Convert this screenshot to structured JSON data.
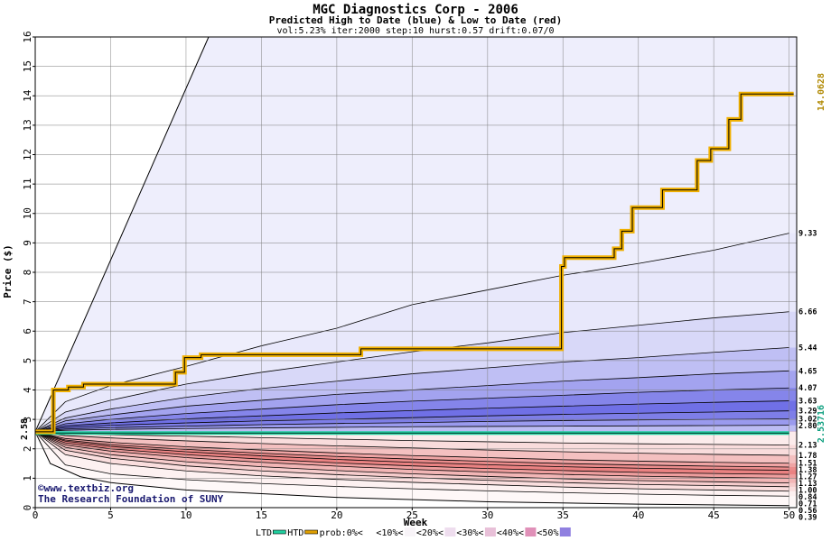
{
  "chart_data": {
    "type": "area",
    "title": "MGC Diagnostics Corp - 2006",
    "subtitle": "Predicted High to Date (blue) &  Low to Date (red)",
    "params": "vol:5.23% iter:2000 step:10 hurst:0.57 drift:0.07/0",
    "xlabel": "Week",
    "ylabel": "Price ($)",
    "xlim": [
      0,
      50.5
    ],
    "ylim": [
      0,
      16
    ],
    "xticks": [
      0,
      5,
      10,
      15,
      20,
      25,
      30,
      35,
      40,
      45,
      50
    ],
    "yticks": [
      0,
      1,
      2,
      3,
      4,
      5,
      6,
      7,
      8,
      9,
      10,
      11,
      12,
      13,
      14,
      15,
      16
    ],
    "grid": true,
    "start_price": 2.58,
    "start_label": "2.58",
    "x": [
      0,
      2,
      5,
      10,
      15,
      20,
      25,
      30,
      35,
      40,
      45,
      50
    ],
    "upper_bands": [
      {
        "end_label": "9.33",
        "color": "#e8e8fb",
        "values": [
          2.58,
          3.6,
          4.15,
          4.8,
          5.5,
          6.1,
          6.9,
          7.4,
          7.9,
          8.3,
          8.75,
          9.33
        ]
      },
      {
        "end_label": "6.66",
        "color": "#d8d8f8",
        "values": [
          2.58,
          3.25,
          3.65,
          4.2,
          4.6,
          4.95,
          5.3,
          5.6,
          5.95,
          6.2,
          6.45,
          6.66
        ]
      },
      {
        "end_label": "5.44",
        "color": "#bfbff4",
        "values": [
          2.58,
          3.05,
          3.35,
          3.75,
          4.05,
          4.3,
          4.55,
          4.75,
          4.95,
          5.1,
          5.28,
          5.44
        ]
      },
      {
        "end_label": "4.65",
        "color": "#a3a3ef",
        "values": [
          2.58,
          2.95,
          3.15,
          3.45,
          3.65,
          3.85,
          4.0,
          4.15,
          4.3,
          4.42,
          4.55,
          4.65
        ]
      },
      {
        "end_label": "4.07",
        "color": "#8585ea",
        "values": [
          2.58,
          2.85,
          3.0,
          3.2,
          3.35,
          3.5,
          3.62,
          3.72,
          3.82,
          3.92,
          4.0,
          4.07
        ]
      },
      {
        "end_label": "3.63",
        "color": "#7070e6",
        "values": [
          2.58,
          2.78,
          2.88,
          3.02,
          3.12,
          3.22,
          3.3,
          3.38,
          3.45,
          3.52,
          3.58,
          3.63
        ]
      },
      {
        "end_label": "3.29",
        "color": "#7e7ee8",
        "values": [
          2.58,
          2.72,
          2.8,
          2.88,
          2.95,
          3.0,
          3.06,
          3.12,
          3.17,
          3.21,
          3.25,
          3.29
        ]
      },
      {
        "end_label": "3.02",
        "color": "#9a9aee",
        "values": [
          2.58,
          2.67,
          2.72,
          2.77,
          2.82,
          2.86,
          2.89,
          2.93,
          2.96,
          2.98,
          3.0,
          3.02
        ]
      },
      {
        "end_label": "2.80",
        "color": "#bcbcf3",
        "values": [
          2.58,
          2.63,
          2.66,
          2.69,
          2.71,
          2.73,
          2.75,
          2.76,
          2.77,
          2.78,
          2.79,
          2.8
        ]
      }
    ],
    "lower_bands": [
      {
        "end_label": "0.39",
        "color": "#fdf1f1",
        "values": [
          2.58,
          1.45,
          1.15,
          0.95,
          0.82,
          0.72,
          0.64,
          0.57,
          0.51,
          0.46,
          0.42,
          0.39
        ]
      },
      {
        "end_label": "0.56",
        "color": "#fadede",
        "values": [
          2.58,
          1.8,
          1.5,
          1.25,
          1.08,
          0.96,
          0.86,
          0.78,
          0.7,
          0.64,
          0.6,
          0.56
        ]
      },
      {
        "end_label": "0.71",
        "color": "#f6cccc",
        "values": [
          2.58,
          1.95,
          1.68,
          1.42,
          1.25,
          1.12,
          1.02,
          0.93,
          0.85,
          0.79,
          0.75,
          0.71
        ]
      },
      {
        "end_label": "0.84",
        "color": "#f2b6b6",
        "values": [
          2.58,
          2.05,
          1.8,
          1.56,
          1.39,
          1.26,
          1.15,
          1.06,
          0.98,
          0.92,
          0.88,
          0.84
        ]
      },
      {
        "end_label": "1.00",
        "color": "#ee9e9e",
        "values": [
          2.58,
          2.13,
          1.92,
          1.7,
          1.54,
          1.41,
          1.3,
          1.21,
          1.13,
          1.07,
          1.03,
          1.0
        ]
      },
      {
        "end_label": "1.13",
        "color": "#ea8282",
        "values": [
          2.58,
          2.2,
          2.0,
          1.8,
          1.65,
          1.52,
          1.42,
          1.33,
          1.26,
          1.2,
          1.16,
          1.13
        ]
      },
      {
        "end_label": "1.27",
        "color": "#eb8c8c",
        "values": [
          2.58,
          2.26,
          2.08,
          1.9,
          1.76,
          1.64,
          1.54,
          1.46,
          1.39,
          1.34,
          1.3,
          1.27
        ]
      },
      {
        "end_label": "1.38",
        "color": "#efa4a4",
        "values": [
          2.58,
          2.3,
          2.14,
          1.98,
          1.85,
          1.74,
          1.65,
          1.57,
          1.5,
          1.45,
          1.41,
          1.38
        ]
      },
      {
        "end_label": "1.51",
        "color": "#f4c0c0",
        "values": [
          2.58,
          2.35,
          2.22,
          2.07,
          1.96,
          1.86,
          1.77,
          1.7,
          1.63,
          1.58,
          1.54,
          1.51
        ]
      },
      {
        "end_label": "1.78",
        "color": "#f9dcdc",
        "values": [
          2.58,
          2.45,
          2.37,
          2.27,
          2.18,
          2.1,
          2.03,
          1.96,
          1.9,
          1.85,
          1.81,
          1.78
        ]
      },
      {
        "end_label": "2.13",
        "color": "#fcecec",
        "values": [
          2.58,
          2.52,
          2.48,
          2.43,
          2.38,
          2.33,
          2.28,
          2.24,
          2.2,
          2.17,
          2.15,
          2.13
        ]
      }
    ],
    "outer_upper_line": {
      "x": [
        0,
        11.5
      ],
      "y": [
        2.58,
        16
      ]
    },
    "outer_lower_line": {
      "x": [
        0,
        1,
        3,
        5,
        10,
        20,
        30,
        40,
        50
      ],
      "y": [
        2.58,
        1.5,
        1.05,
        0.85,
        0.6,
        0.35,
        0.2,
        0.12,
        0.07
      ]
    },
    "ltd_line": {
      "x": [
        0,
        50
      ],
      "y": [
        2.53716,
        2.53716
      ]
    },
    "htd_line": {
      "x": [
        0,
        1.2,
        1.2,
        2.2,
        2.2,
        3.2,
        3.2,
        9.3,
        9.3,
        9.9,
        9.9,
        11.0,
        11.0,
        21.6,
        21.6,
        34.9,
        34.9,
        35.1,
        35.1,
        38.4,
        38.4,
        38.9,
        38.9,
        39.6,
        39.6,
        41.6,
        41.6,
        43.9,
        43.9,
        44.8,
        44.8,
        46.0,
        46.0,
        46.8,
        46.8,
        50.3
      ],
      "y": [
        2.58,
        2.58,
        4.0,
        4.0,
        4.1,
        4.1,
        4.2,
        4.2,
        4.6,
        4.6,
        5.1,
        5.1,
        5.2,
        5.2,
        5.4,
        5.4,
        8.2,
        8.2,
        8.5,
        8.5,
        8.8,
        8.8,
        9.4,
        9.4,
        10.2,
        10.2,
        10.8,
        10.8,
        11.8,
        11.8,
        12.2,
        12.2,
        13.2,
        13.2,
        14.06,
        14.06
      ]
    },
    "htd_value_label": "14.0628",
    "ltd_value_label": "2.53716",
    "watermark": [
      "©www.textbiz.org",
      "The Research Foundation of SUNY"
    ],
    "legend": {
      "position": "bottom",
      "items": [
        {
          "label": "LTD",
          "color": "#20d0a0"
        },
        {
          "label": "HTD",
          "color": "#e0a000"
        },
        {
          "label": "prob:0%<",
          "color": "#ffffff"
        },
        {
          "label": "<10%<",
          "color": "#f8f4f8"
        },
        {
          "label": "<20%<",
          "color": "#eeddee"
        },
        {
          "label": "<30%<",
          "color": "#e8c0d8"
        },
        {
          "label": "<40%<",
          "color": "#e090b8"
        },
        {
          "label": "<50%",
          "color": "#9080e0"
        }
      ]
    }
  }
}
